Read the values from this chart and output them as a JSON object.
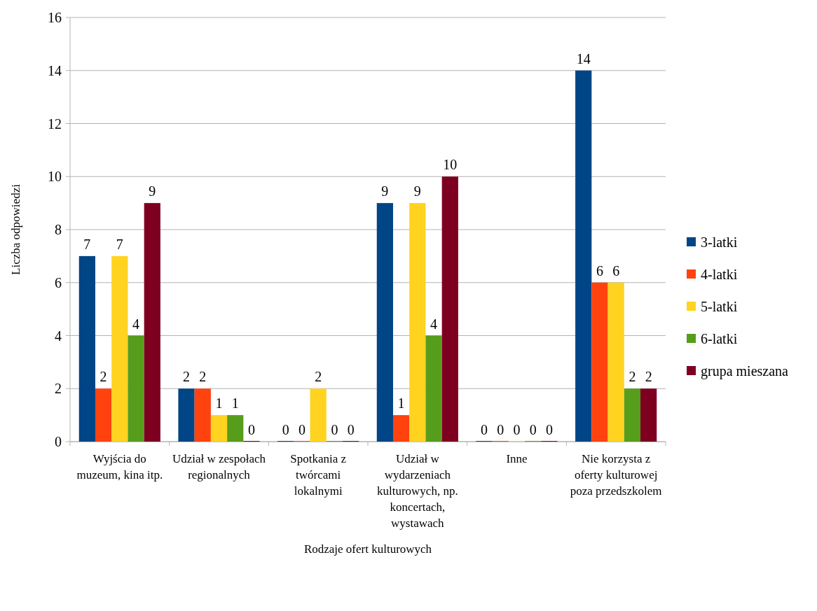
{
  "chart_data": {
    "type": "bar",
    "xlabel": "Rodzaje ofert kulturowych",
    "ylabel": "Liczba odpowiedzi",
    "categories": [
      "Wyjścia do muzeum, kina itp.",
      "Udział w zespołach regionalnych",
      "Spotkania z twórcami lokalnymi",
      "Udział w wydarzeniach kulturowych, np. koncertach, wystawach",
      "Inne",
      "Nie korzysta z oferty kulturowej poza przedszkolem"
    ],
    "series": [
      {
        "name": "3-latki",
        "color": "#004586",
        "values": [
          7,
          2,
          0,
          9,
          0,
          14
        ]
      },
      {
        "name": "4-latki",
        "color": "#ff420e",
        "values": [
          2,
          2,
          0,
          1,
          0,
          6
        ]
      },
      {
        "name": "5-latki",
        "color": "#ffd320",
        "values": [
          7,
          1,
          2,
          9,
          0,
          6
        ]
      },
      {
        "name": "6-latki",
        "color": "#579d1c",
        "values": [
          4,
          1,
          0,
          4,
          0,
          2
        ]
      },
      {
        "name": "grupa mieszana",
        "color": "#7e0021",
        "values": [
          9,
          0,
          0,
          10,
          0,
          2
        ]
      }
    ],
    "ylim": [
      0,
      16
    ],
    "yticks": [
      0,
      2,
      4,
      6,
      8,
      10,
      12,
      14,
      16
    ],
    "grid": "y",
    "legend": "right",
    "data_labels": true
  }
}
